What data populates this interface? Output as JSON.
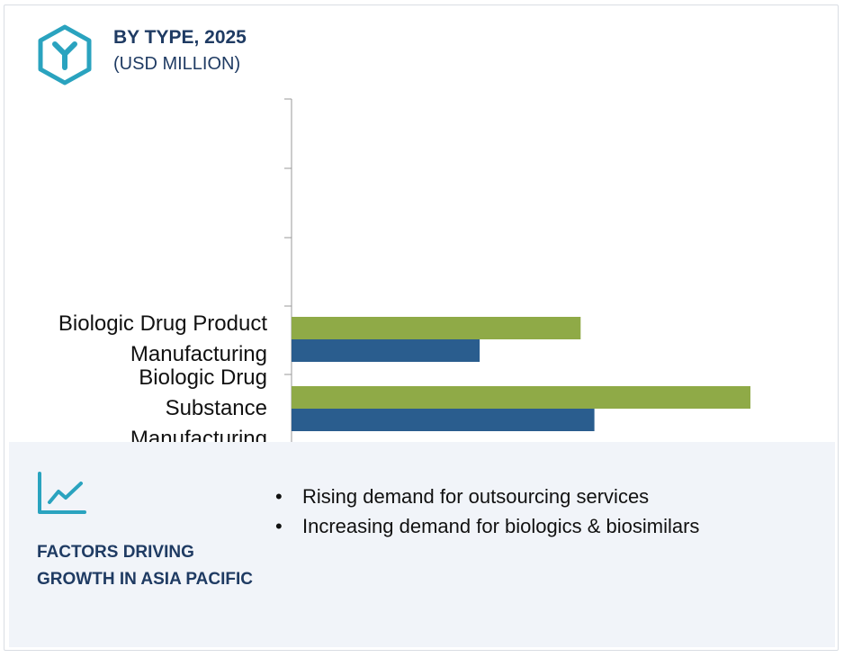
{
  "header": {
    "title": "BY TYPE, 2025",
    "subtitle": "(USD MILLION)",
    "icon": "segment-y-hexagon-icon"
  },
  "colors": {
    "series_green": "#8faa47",
    "series_blue": "#2a5d8e",
    "accent": "#2aa3bf",
    "heading": "#1f3b63",
    "panel_bg": "#f1f4f9"
  },
  "chart_data": {
    "type": "bar",
    "orientation": "horizontal",
    "categories": [
      "Biologic Drug Product Manufacturing",
      "Biologic Drug Substance Manufacturing"
    ],
    "category_lines": [
      [
        "Biologic Drug Product",
        "Manufacturing"
      ],
      [
        "Biologic Drug",
        "Substance",
        "Manufacturing"
      ]
    ],
    "series": [
      {
        "values": [
          63,
          100
        ],
        "color": "#8faa47"
      },
      {
        "values": [
          41,
          66
        ],
        "color": "#2a5d8e"
      }
    ],
    "xlim": [
      0,
      100
    ],
    "title": "BY TYPE, 2025",
    "subtitle": "(USD MILLION)",
    "xlabel": "",
    "ylabel": "",
    "grid": false,
    "legend": "none"
  },
  "factors": {
    "icon": "trend-line-chart-icon",
    "heading_lines": [
      "FACTORS DRIVING",
      "GROWTH IN ASIA PACIFIC"
    ],
    "bullets": [
      "Rising demand for outsourcing services",
      "Increasing demand for biologics & biosimilars"
    ]
  }
}
